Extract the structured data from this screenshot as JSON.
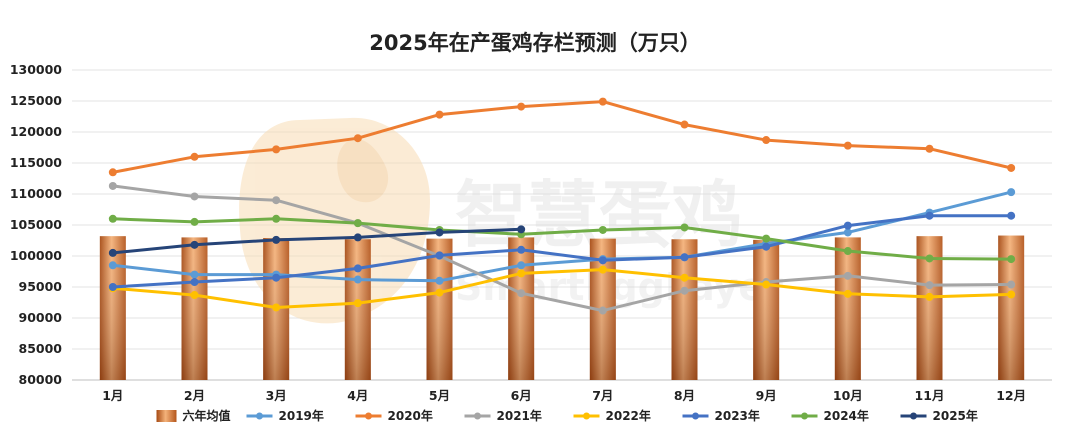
{
  "chart_data": {
    "type": "bar+line",
    "title": "2025年在产蛋鸡存栏预测（万只）",
    "categories": [
      "1月",
      "2月",
      "3月",
      "4月",
      "5月",
      "6月",
      "7月",
      "8月",
      "9月",
      "10月",
      "11月",
      "12月"
    ],
    "ylim": [
      80000,
      130000
    ],
    "yticks": [
      80000,
      85000,
      90000,
      95000,
      100000,
      105000,
      110000,
      115000,
      120000,
      125000,
      130000
    ],
    "grid": true,
    "legend_position": "bottom",
    "bar_series": {
      "name": "六年均值",
      "color": "#d9773a",
      "values": [
        103200,
        103000,
        102900,
        102700,
        102800,
        103000,
        102800,
        102700,
        102600,
        103000,
        103200,
        103300
      ]
    },
    "series": [
      {
        "name": "2019年",
        "color": "#5b9bd5",
        "values": [
          98500,
          97000,
          97000,
          96200,
          96000,
          98500,
          99500,
          99800,
          102000,
          103800,
          107000,
          110300
        ]
      },
      {
        "name": "2020年",
        "color": "#ed7d31",
        "values": [
          113500,
          116000,
          117200,
          119000,
          122800,
          124100,
          124900,
          121200,
          118700,
          117800,
          117300,
          114200
        ]
      },
      {
        "name": "2021年",
        "color": "#a5a5a5",
        "values": [
          111300,
          109600,
          109000,
          105300,
          100000,
          94000,
          91200,
          94400,
          95800,
          96800,
          95300,
          95400
        ]
      },
      {
        "name": "2022年",
        "color": "#ffc000",
        "values": [
          94800,
          93700,
          91700,
          92400,
          94100,
          97200,
          97800,
          96500,
          95400,
          93900,
          93400,
          93800
        ]
      },
      {
        "name": "2023年",
        "color": "#4472c4",
        "values": [
          95000,
          95800,
          96500,
          98000,
          100100,
          101000,
          99300,
          99800,
          101500,
          104900,
          106500,
          106500
        ]
      },
      {
        "name": "2024年",
        "color": "#70ad47",
        "values": [
          106000,
          105500,
          106000,
          105300,
          104200,
          103500,
          104200,
          104600,
          102800,
          100800,
          99600,
          99500
        ]
      },
      {
        "name": "2025年",
        "color": "#264478",
        "values": [
          100500,
          101800,
          102600,
          103000,
          103800,
          104300,
          null,
          null,
          null,
          null,
          null,
          null
        ]
      }
    ]
  }
}
